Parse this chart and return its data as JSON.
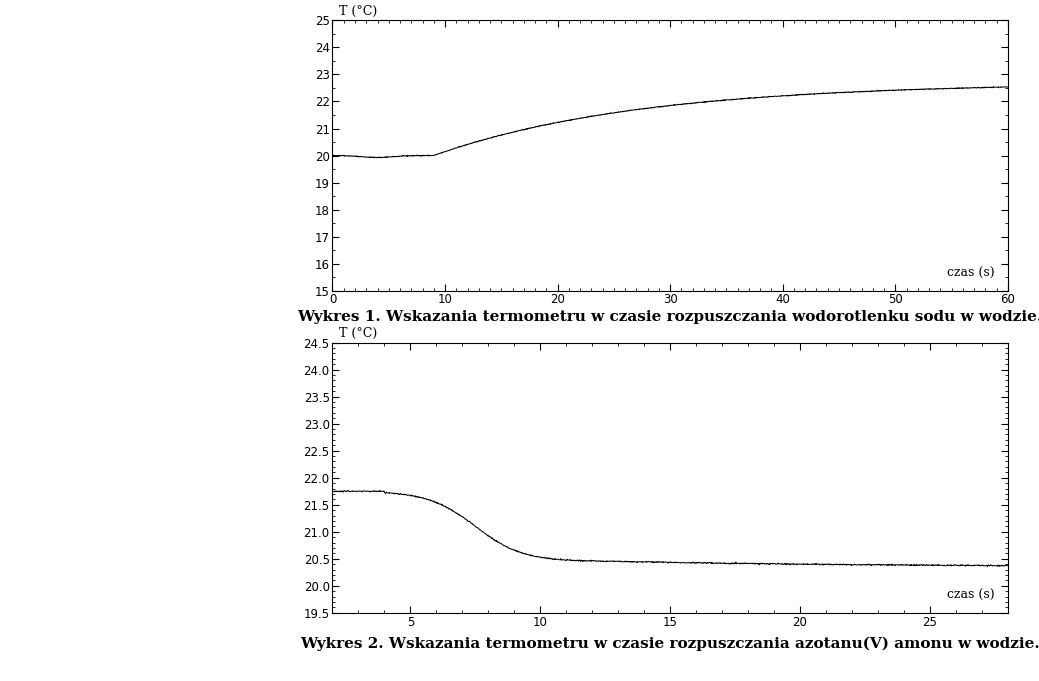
{
  "chart1": {
    "xlim": [
      0,
      60
    ],
    "ylim": [
      15,
      25
    ],
    "xlabel": "czas (s)",
    "ylabel": "T (°C)",
    "yticks": [
      15,
      16,
      17,
      18,
      19,
      20,
      21,
      22,
      23,
      24,
      25
    ],
    "xticks": [
      0,
      10,
      20,
      30,
      40,
      50,
      60
    ],
    "line_color": "#000000",
    "caption": "Wykres 1. Wskazania termometru w czasie rozpuszczania wodorotlenku sodu w wodzie."
  },
  "chart2": {
    "xlim": [
      2,
      28
    ],
    "ylim": [
      19.5,
      24.5
    ],
    "xlabel": "czas (s)",
    "ylabel": "T (°C)",
    "yticks": [
      19.5,
      20.0,
      20.5,
      21.0,
      21.5,
      22.0,
      22.5,
      23.0,
      23.5,
      24.0,
      24.5
    ],
    "xticks": [
      5,
      10,
      15,
      20,
      25
    ],
    "line_color": "#000000",
    "caption": "Wykres 2. Wskazania termometru w czasie rozpuszczania azotanu(V) amonu w wodzie."
  },
  "bg_color": "#ffffff",
  "font_family": "DejaVu Serif",
  "fig_width": 10.39,
  "fig_height": 6.81,
  "dpi": 100
}
